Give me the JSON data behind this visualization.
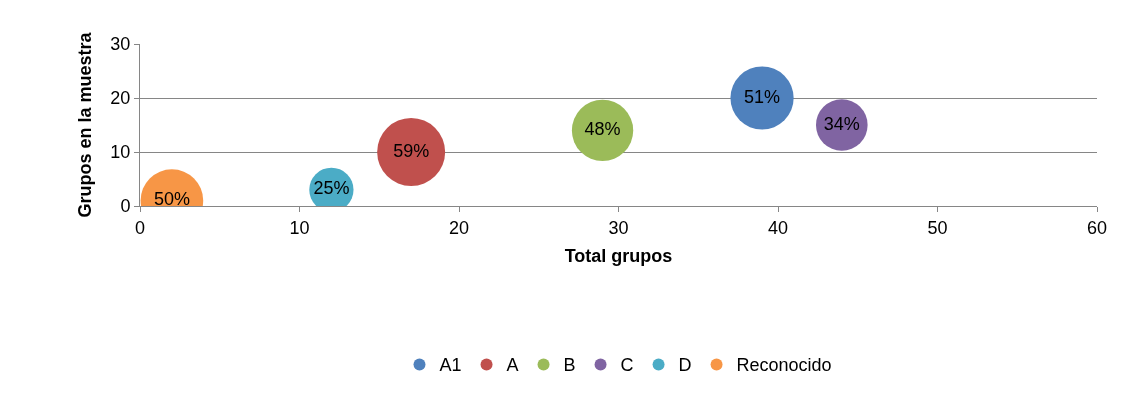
{
  "chart_data": {
    "type": "bubble",
    "xlabel": "Total grupos",
    "ylabel": "Grupos en la muestra",
    "xlim": [
      0,
      60
    ],
    "xticks": [
      0,
      10,
      20,
      30,
      40,
      50,
      60
    ],
    "ylim": [
      0,
      30
    ],
    "yticks": [
      0,
      10,
      20,
      30
    ],
    "grid": "y",
    "legend": "bottom",
    "series": [
      {
        "name": "A1",
        "color": "#4f81bd",
        "x": [
          39
        ],
        "values": [
          20
        ],
        "sizes": [
          51
        ],
        "value_labels": [
          "51%"
        ]
      },
      {
        "name": "A",
        "color": "#c0504d",
        "x": [
          17
        ],
        "values": [
          10
        ],
        "sizes": [
          59
        ],
        "value_labels": [
          "59%"
        ]
      },
      {
        "name": "B",
        "color": "#9bbb59",
        "x": [
          29
        ],
        "values": [
          14
        ],
        "sizes": [
          48
        ],
        "value_labels": [
          "48%"
        ]
      },
      {
        "name": "C",
        "color": "#8064a2",
        "x": [
          44
        ],
        "values": [
          15
        ],
        "sizes": [
          34
        ],
        "value_labels": [
          "34%"
        ]
      },
      {
        "name": "D",
        "color": "#4bacc6",
        "x": [
          12
        ],
        "values": [
          3
        ],
        "sizes": [
          25
        ],
        "value_labels": [
          "25%"
        ]
      },
      {
        "name": "Reconocido",
        "color": "#f79646",
        "x": [
          2
        ],
        "values": [
          1
        ],
        "sizes": [
          50
        ],
        "value_labels": [
          "50%"
        ]
      }
    ]
  }
}
